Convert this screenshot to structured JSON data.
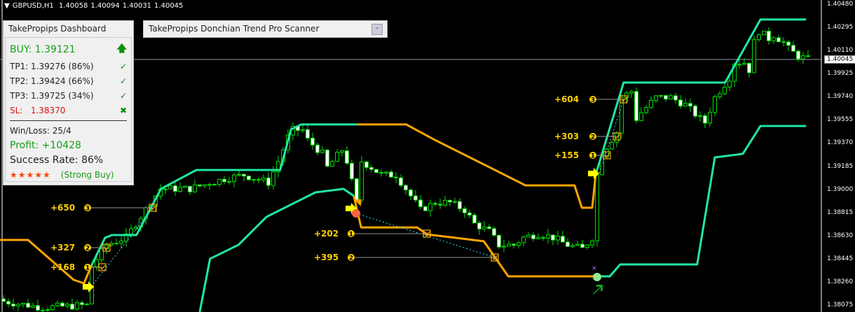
{
  "header": {
    "symbol": "GBPUSD,H1",
    "open": "1.40058",
    "high": "1.40094",
    "low": "1.40031",
    "close": "1.40045"
  },
  "dashboard": {
    "title": "TakePropips Dashboard",
    "buy_label": "BUY: 1.39121",
    "tp1": "TP1: 1.39276 (86%)",
    "tp2": "TP2: 1.39424 (66%)",
    "tp3": "TP3: 1.39725 (34%)",
    "sl_label": "SL:",
    "sl_value": "1.38370",
    "win_loss": "Win/Loss: 25/4",
    "profit": "Profit: +10428",
    "success_rate": "Success Rate: 86%",
    "stars": "★★★★★",
    "rating_text": "(Strong Buy)",
    "rating_stars": 5
  },
  "scanner": {
    "title": "TakePropips Donchian Trend Pro Scanner",
    "minimize_label": "-"
  },
  "price_axis": {
    "labels": [
      "1.40480",
      "1.40295",
      "1.40110",
      "1.39925",
      "1.39740",
      "1.39555",
      "1.39370",
      "1.39185",
      "1.39000",
      "1.38815",
      "1.38630",
      "1.38445",
      "1.38260",
      "1.38075"
    ],
    "current_price": "1.40045"
  },
  "colors": {
    "bull_band": "#20e8a0",
    "bear_band": "#ffa500",
    "candle": "#00e000",
    "label": "#ffd000"
  },
  "profit_labels": [
    "+650",
    "+327",
    "+168",
    "+202",
    "+395",
    "+604",
    "+303",
    "+155"
  ],
  "chart_data": {
    "type": "candlestick",
    "ylim": [
      1.38025,
      1.40517
    ],
    "close_path": [
      [
        0,
        1.3811
      ],
      [
        8,
        1.3806
      ],
      [
        17,
        1.3808
      ],
      [
        18,
        1.3839
      ],
      [
        21,
        1.3856
      ],
      [
        25,
        1.3862
      ],
      [
        30,
        1.389
      ],
      [
        32,
        1.3901
      ],
      [
        38,
        1.3901
      ],
      [
        45,
        1.3909
      ],
      [
        49,
        1.3912
      ],
      [
        54,
        1.3906
      ],
      [
        56,
        1.3923
      ],
      [
        58.6,
        1.3948
      ],
      [
        61,
        1.3948
      ],
      [
        62,
        1.394
      ],
      [
        65,
        1.3929
      ],
      [
        66,
        1.3918
      ],
      [
        69,
        1.3932
      ],
      [
        70,
        1.3923
      ],
      [
        72,
        1.389
      ],
      [
        73,
        1.3923
      ],
      [
        75,
        1.3918
      ],
      [
        77,
        1.3912
      ],
      [
        80,
        1.3912
      ],
      [
        82,
        1.3901
      ],
      [
        85,
        1.3884
      ],
      [
        88,
        1.389
      ],
      [
        91,
        1.389
      ],
      [
        94,
        1.3884
      ],
      [
        96,
        1.3873
      ],
      [
        99,
        1.3867
      ],
      [
        101,
        1.3856
      ],
      [
        104,
        1.3856
      ],
      [
        106,
        1.3862
      ],
      [
        109,
        1.3865
      ],
      [
        112,
        1.3862
      ],
      [
        115,
        1.3856
      ],
      [
        118,
        1.3853
      ],
      [
        120,
        1.3862
      ],
      [
        121,
        1.3912
      ],
      [
        122,
        1.3929
      ],
      [
        123,
        1.3935
      ],
      [
        125,
        1.3946
      ],
      [
        126,
        1.3974
      ],
      [
        128,
        1.3979
      ],
      [
        129,
        1.3957
      ],
      [
        130,
        1.3962
      ],
      [
        133,
        1.3974
      ],
      [
        136,
        1.3974
      ],
      [
        139,
        1.3968
      ],
      [
        142,
        1.3957
      ],
      [
        143,
        1.3954
      ],
      [
        145,
        1.3974
      ],
      [
        148,
        1.399
      ],
      [
        149,
        1.4002
      ],
      [
        151,
        1.4002
      ],
      [
        152,
        1.3996
      ],
      [
        153,
        1.4018
      ],
      [
        154,
        1.4027
      ],
      [
        156,
        1.4021
      ],
      [
        157,
        1.4024
      ],
      [
        159,
        1.4018
      ],
      [
        160,
        1.4013
      ],
      [
        162,
        1.4007
      ],
      [
        164,
        1.40045
      ]
    ],
    "upper_band": [
      {
        "trend": "bear",
        "points": [
          [
            -1,
            1.38601
          ],
          [
            5,
            1.38601
          ],
          [
            14.3,
            1.38282
          ],
          [
            16.4,
            1.38254
          ],
          [
            17.9,
            1.38394
          ]
        ]
      },
      {
        "trend": "bull",
        "points": [
          [
            17.9,
            1.38394
          ],
          [
            20.7,
            1.38618
          ],
          [
            22.1,
            1.3864
          ],
          [
            27.1,
            1.3864
          ],
          [
            32.1,
            1.39009
          ],
          [
            39.3,
            1.3916
          ],
          [
            56.4,
            1.3916
          ],
          [
            58.6,
            1.39484
          ],
          [
            60.7,
            1.39524
          ],
          [
            72.1,
            1.39524
          ]
        ]
      },
      {
        "trend": "bear",
        "points": [
          [
            72.1,
            1.39524
          ],
          [
            82.1,
            1.39524
          ],
          [
            87.9,
            1.39401
          ],
          [
            99.3,
            1.39177
          ],
          [
            106.4,
            1.39037
          ],
          [
            116.4,
            1.39037
          ],
          [
            117.9,
            1.38858
          ],
          [
            120,
            1.38858
          ],
          [
            120.7,
            1.39121
          ]
        ]
      },
      {
        "trend": "bull",
        "points": [
          [
            120.7,
            1.39121
          ],
          [
            126.4,
            1.39859
          ],
          [
            147.1,
            1.39859
          ],
          [
            154.3,
            1.40363
          ],
          [
            163.6,
            1.40363
          ]
        ]
      }
    ],
    "lower_band": [
      {
        "trend": "bull",
        "points": [
          [
            40,
            1.38025
          ],
          [
            42.1,
            1.3845
          ],
          [
            47.9,
            1.38562
          ],
          [
            53.6,
            1.38785
          ],
          [
            59.3,
            1.38897
          ],
          [
            63.6,
            1.38981
          ],
          [
            69.3,
            1.39009
          ],
          [
            71.4,
            1.38953
          ]
        ]
      },
      {
        "trend": "bear",
        "points": [
          [
            71.4,
            1.38953
          ],
          [
            72.9,
            1.38701
          ],
          [
            84.3,
            1.38701
          ],
          [
            86.4,
            1.38645
          ],
          [
            97.9,
            1.3859
          ],
          [
            102.9,
            1.3831
          ],
          [
            120.7,
            1.3831
          ]
        ]
      },
      {
        "trend": "bull",
        "points": [
          [
            120.7,
            1.3831
          ],
          [
            123.6,
            1.3831
          ],
          [
            125.7,
            1.38405
          ],
          [
            141.4,
            1.38405
          ],
          [
            145,
            1.39261
          ],
          [
            150.7,
            1.39289
          ],
          [
            154.3,
            1.39512
          ],
          [
            163.6,
            1.39512
          ]
        ]
      }
    ]
  }
}
